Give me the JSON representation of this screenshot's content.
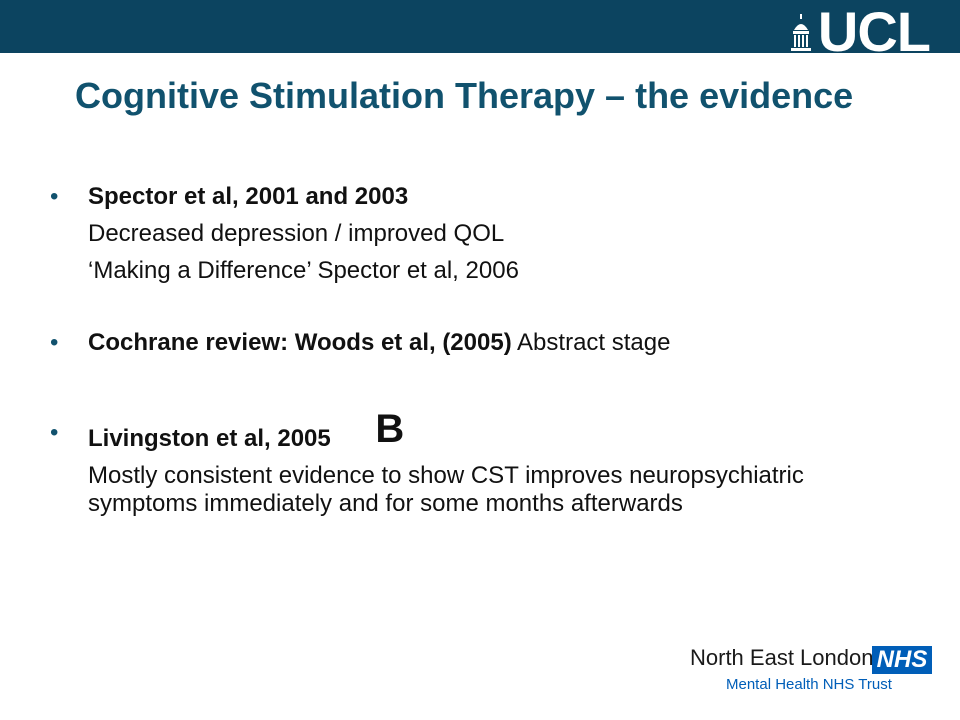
{
  "header": {
    "logo_text": "UCL",
    "bar_color": "#0c4460"
  },
  "slide": {
    "title": "Cognitive Stimulation Therapy – the evidence",
    "title_color": "#11526e",
    "bullets": [
      {
        "heading": "Spector et al, 2001 and 2003",
        "lines": [
          "Decreased depression / improved QOL",
          "‘Making a Difference’ Spector et al, 2006"
        ]
      },
      {
        "heading": "Cochrane review: Woods et al, (2005)",
        "heading_rest": " Abstract stage"
      },
      {
        "heading": "Livingston et al, 2005",
        "grade": "B",
        "lines": [
          "Mostly consistent evidence to show CST improves neuropsychiatric symptoms immediately and for some months afterwards"
        ]
      }
    ]
  },
  "footer": {
    "org_name": "North East London",
    "nhs_badge": "NHS",
    "trust_name": "Mental Health NHS Trust",
    "nhs_color": "#005eb8"
  }
}
